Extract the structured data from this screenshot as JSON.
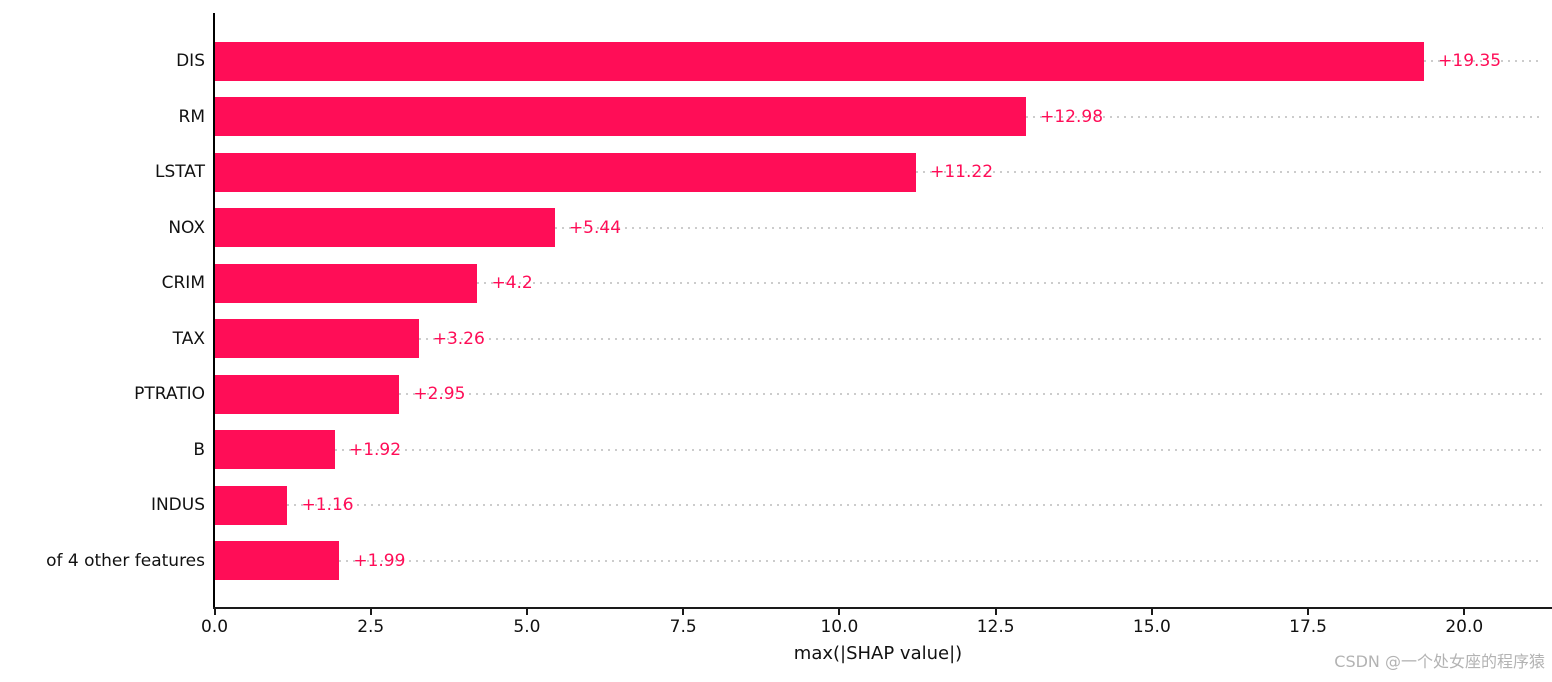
{
  "chart_data": {
    "type": "bar",
    "orientation": "horizontal",
    "title": "",
    "xlabel": "max(|SHAP value|)",
    "ylabel": "",
    "categories": [
      "DIS",
      "RM",
      "LSTAT",
      "NOX",
      "CRIM",
      "TAX",
      "PTRATIO",
      "B",
      "INDUS",
      "of 4 other features"
    ],
    "values": [
      19.35,
      12.98,
      11.22,
      5.44,
      4.2,
      3.26,
      2.95,
      1.92,
      1.16,
      1.99
    ],
    "value_labels": [
      "+19.35",
      "+12.98",
      "+11.22",
      "+5.44",
      "+4.2",
      "+3.26",
      "+2.95",
      "+1.92",
      "+1.16",
      "+1.99"
    ],
    "x_tick_labels": [
      "0.0",
      "2.5",
      "5.0",
      "7.5",
      "10.0",
      "12.5",
      "15.0",
      "17.5",
      "20.0"
    ],
    "x_tick_values": [
      0,
      2.5,
      5,
      7.5,
      10,
      12.5,
      15,
      17.5,
      20
    ],
    "xlim": [
      0,
      21.3
    ],
    "grid": "dotted row leader lines, light gray",
    "legend": "none",
    "bar_color": "#ff0d57",
    "value_label_color": "#ff0d57",
    "axis_color": "#111111",
    "leader_line_color": "#cccccc"
  },
  "watermark": {
    "text": "CSDN @一个处女座的程序猿",
    "color": "#b3b3b3"
  }
}
